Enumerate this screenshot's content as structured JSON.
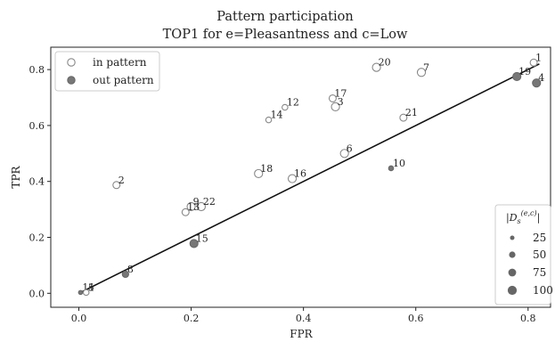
{
  "chart_data": {
    "type": "scatter",
    "title": "Pattern participation",
    "subtitle": "TOP1 for e=Pleasantness and c=Low",
    "xlabel": "FPR",
    "ylabel": "TPR",
    "xlim": [
      -0.05,
      0.84
    ],
    "ylim": [
      -0.05,
      0.88
    ],
    "xticks": [
      "0.0",
      "0.2",
      "0.4",
      "0.6",
      "0.8"
    ],
    "xtick_values": [
      0.0,
      0.2,
      0.4,
      0.6,
      0.8
    ],
    "yticks": [
      "0.0",
      "0.2",
      "0.4",
      "0.6",
      "0.8"
    ],
    "ytick_values": [
      0.0,
      0.2,
      0.4,
      0.6,
      0.8
    ],
    "grid": false,
    "legend": {
      "placement": "top-left",
      "entries": [
        {
          "label": "in pattern",
          "style": "hollow"
        },
        {
          "label": "out pattern",
          "style": "filled"
        }
      ]
    },
    "size_legend": {
      "placement": "bottom-right",
      "title": "|D_s^(e,c)|",
      "title_main": "|D",
      "title_sub": "s",
      "title_sup": "(e,c)",
      "title_end": "|",
      "entries": [
        {
          "label": "25",
          "value": 25
        },
        {
          "label": "50",
          "value": 50
        },
        {
          "label": "75",
          "value": 75
        },
        {
          "label": "100",
          "value": 100
        }
      ]
    },
    "trend_line": {
      "x": [
        0.0,
        0.82
      ],
      "y": [
        0.0,
        0.82
      ]
    },
    "points": [
      {
        "label": "1",
        "x": 0.81,
        "y": 0.825,
        "in_pattern": true,
        "size": 30
      },
      {
        "label": "19",
        "x": 0.78,
        "y": 0.775,
        "in_pattern": false,
        "size": 40
      },
      {
        "label": "4",
        "x": 0.815,
        "y": 0.752,
        "in_pattern": false,
        "size": 40
      },
      {
        "label": "20",
        "x": 0.53,
        "y": 0.808,
        "in_pattern": true,
        "size": 40
      },
      {
        "label": "7",
        "x": 0.61,
        "y": 0.79,
        "in_pattern": true,
        "size": 40
      },
      {
        "label": "17",
        "x": 0.452,
        "y": 0.697,
        "in_pattern": true,
        "size": 30
      },
      {
        "label": "3",
        "x": 0.457,
        "y": 0.667,
        "in_pattern": true,
        "size": 40
      },
      {
        "label": "12",
        "x": 0.367,
        "y": 0.665,
        "in_pattern": true,
        "size": 20
      },
      {
        "label": "14",
        "x": 0.338,
        "y": 0.62,
        "in_pattern": true,
        "size": 20
      },
      {
        "label": "21",
        "x": 0.578,
        "y": 0.628,
        "in_pattern": true,
        "size": 30
      },
      {
        "label": "6",
        "x": 0.473,
        "y": 0.5,
        "in_pattern": true,
        "size": 40
      },
      {
        "label": "10",
        "x": 0.556,
        "y": 0.447,
        "in_pattern": false,
        "size": 15
      },
      {
        "label": "18",
        "x": 0.32,
        "y": 0.428,
        "in_pattern": true,
        "size": 40
      },
      {
        "label": "16",
        "x": 0.38,
        "y": 0.41,
        "in_pattern": true,
        "size": 40
      },
      {
        "label": "2",
        "x": 0.067,
        "y": 0.387,
        "in_pattern": true,
        "size": 30
      },
      {
        "label": "9",
        "x": 0.2,
        "y": 0.31,
        "in_pattern": true,
        "size": 40
      },
      {
        "label": "22",
        "x": 0.218,
        "y": 0.31,
        "in_pattern": true,
        "size": 40
      },
      {
        "label": "13",
        "x": 0.19,
        "y": 0.29,
        "in_pattern": true,
        "size": 30
      },
      {
        "label": "15",
        "x": 0.205,
        "y": 0.178,
        "in_pattern": false,
        "size": 40
      },
      {
        "label": "8",
        "x": 0.083,
        "y": 0.068,
        "in_pattern": false,
        "size": 25
      },
      {
        "label": "11",
        "x": 0.003,
        "y": 0.003,
        "in_pattern": false,
        "size": 10
      },
      {
        "label": "5",
        "x": 0.013,
        "y": 0.003,
        "in_pattern": true,
        "size": 20
      }
    ]
  }
}
